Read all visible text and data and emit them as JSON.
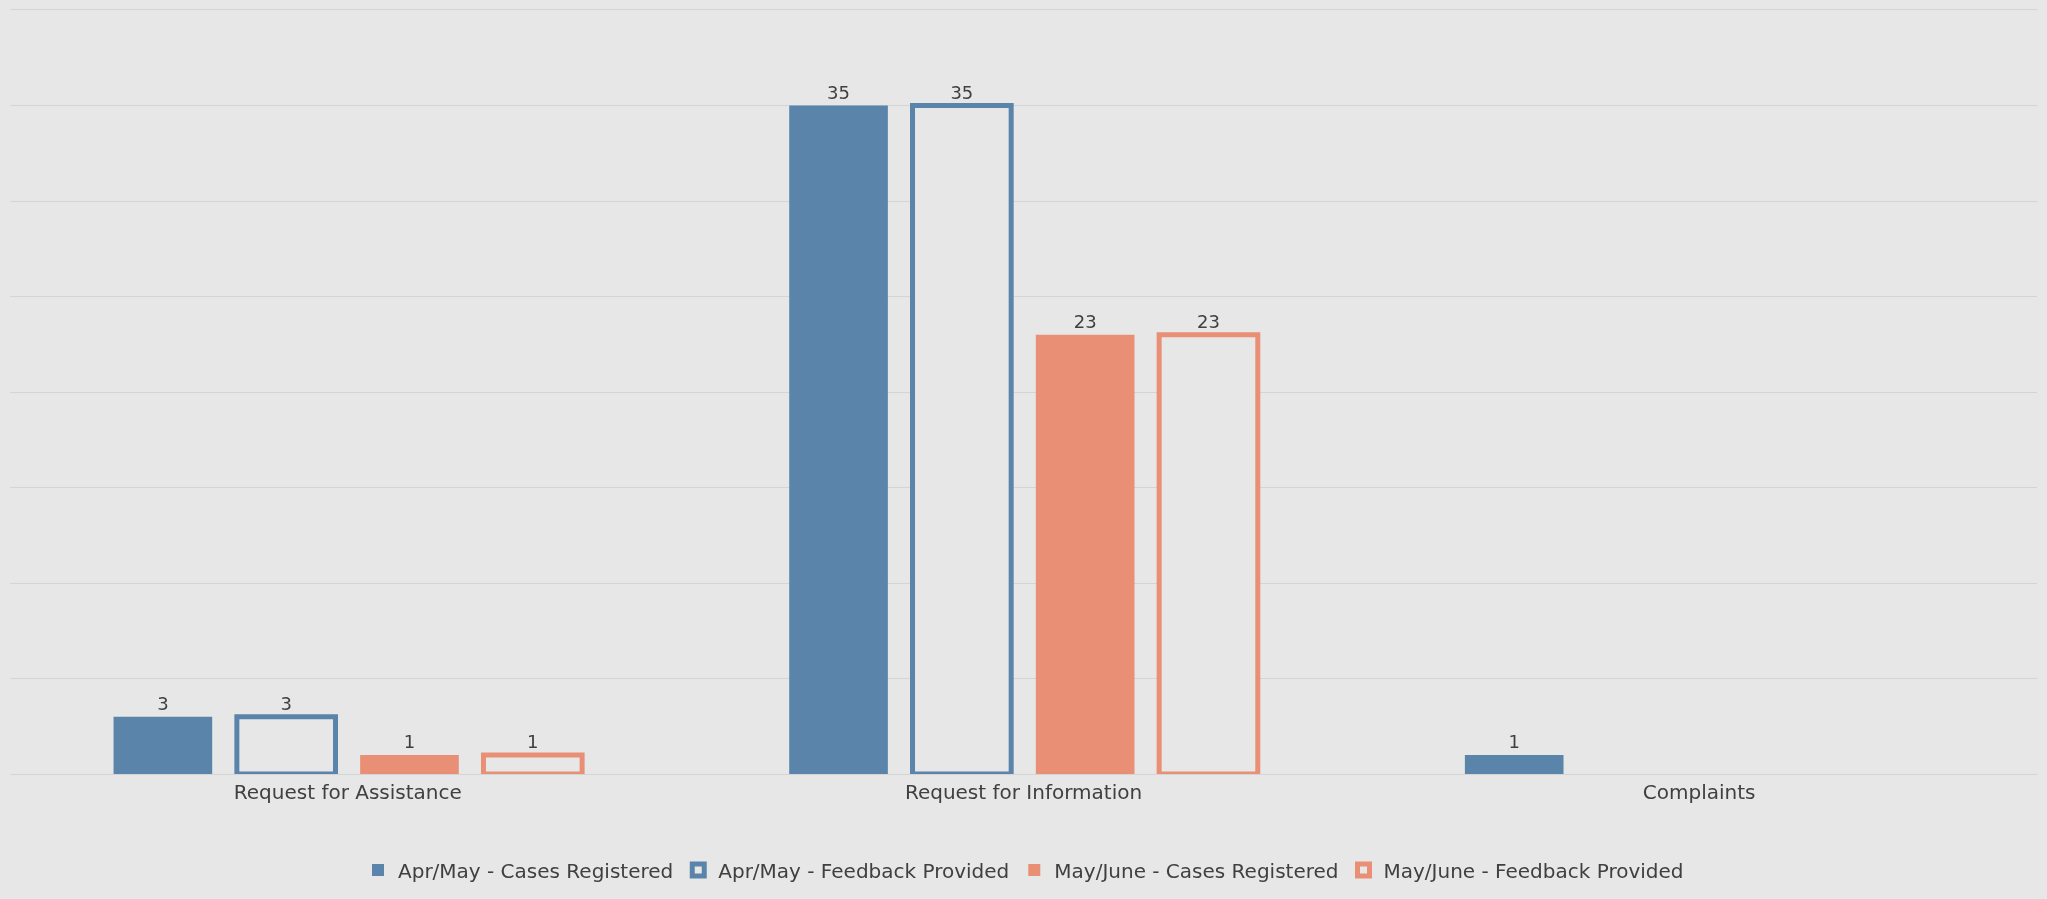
{
  "chart_data": {
    "type": "bar",
    "categories": [
      "Request for Assistance",
      "Request for Information",
      "Complaints"
    ],
    "series": [
      {
        "name": "Apr/May - Cases Registered",
        "color": "#5b84ab",
        "values": [
          3,
          35,
          1
        ]
      },
      {
        "name": "Apr/May - Feedback Provided",
        "color": "#5b84ab",
        "line_style": "solid",
        "values": [
          3,
          35,
          null
        ]
      },
      {
        "name": "May/June - Cases Registered",
        "color": "#e88f76",
        "values": [
          1,
          23,
          null
        ]
      },
      {
        "name": "May/June - Feedback Provided",
        "color": "#e88f76",
        "line_style": "solid",
        "values": [
          1,
          23,
          null
        ]
      }
    ],
    "ylim": [
      0,
      40
    ],
    "yticks": [
      {
        "value": 0,
        "label": null
      },
      {
        "value": 5,
        "label": null
      },
      {
        "value": 10,
        "label": null
      },
      {
        "value": 15,
        "label": null
      },
      {
        "value": 20,
        "label": null
      },
      {
        "value": 25,
        "label": null
      },
      {
        "value": 30,
        "label": null
      },
      {
        "value": 35,
        "label": null
      }
    ],
    "grid": "y",
    "legend": "bottom",
    "data_labels": true,
    "tick_labels": "x"
  }
}
